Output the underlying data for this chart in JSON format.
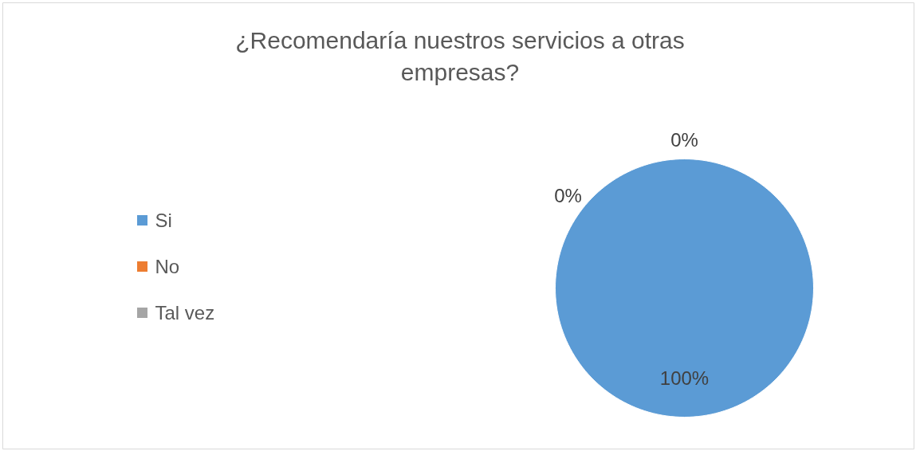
{
  "chart_data": {
    "type": "pie",
    "title": "¿Recomendaría nuestros servicios a otras\nempresas?",
    "categories": [
      "Si",
      "No",
      "Tal vez"
    ],
    "values": [
      100,
      0,
      0
    ],
    "colors": [
      "#5b9bd5",
      "#ed7d31",
      "#a5a5a5"
    ],
    "value_labels": [
      "100%",
      "0%",
      "0%"
    ],
    "legend": "left"
  }
}
